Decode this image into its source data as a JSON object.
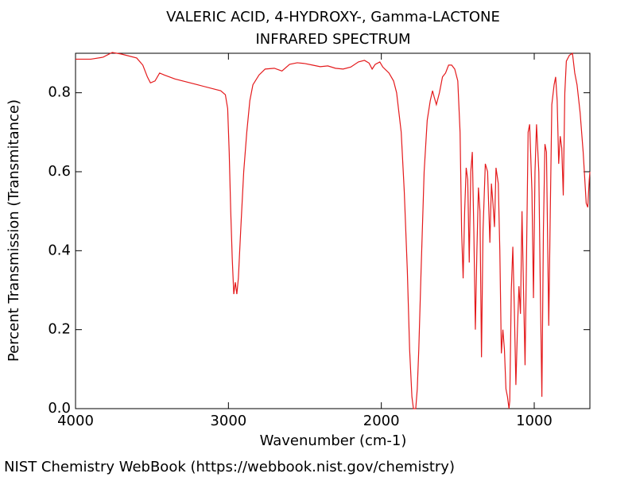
{
  "chart_data": {
    "type": "line",
    "title": "VALERIC ACID, 4-HYDROXY-, Gamma-LACTONE",
    "subtitle": "INFRARED SPECTRUM",
    "x_label": "Wavenumber (cm-1)",
    "y_label": "Percent Transmission (Transmitance)",
    "footer": "NIST Chemistry WebBook (https://webbook.nist.gov/chemistry)",
    "color": "#e41a1c",
    "xlim": [
      4000,
      636
    ],
    "ylim": [
      0,
      0.9
    ],
    "xticks": [
      4000,
      3000,
      2000,
      1000
    ],
    "yticks": [
      {
        "value": 0,
        "label": "0.0"
      },
      0.2,
      0.4,
      0.6,
      0.8
    ],
    "x": [
      4000,
      3900,
      3820,
      3760,
      3700,
      3600,
      3560,
      3530,
      3510,
      3480,
      3450,
      3420,
      3350,
      3200,
      3050,
      3020,
      3005,
      2995,
      2985,
      2975,
      2965,
      2955,
      2945,
      2935,
      2920,
      2900,
      2880,
      2860,
      2840,
      2800,
      2760,
      2700,
      2650,
      2600,
      2550,
      2500,
      2450,
      2400,
      2350,
      2300,
      2250,
      2200,
      2150,
      2110,
      2080,
      2060,
      2040,
      2010,
      1990,
      1950,
      1920,
      1900,
      1870,
      1850,
      1830,
      1815,
      1800,
      1790,
      1775,
      1765,
      1755,
      1740,
      1720,
      1700,
      1680,
      1665,
      1655,
      1640,
      1620,
      1600,
      1580,
      1560,
      1540,
      1520,
      1500,
      1485,
      1475,
      1465,
      1455,
      1445,
      1435,
      1425,
      1415,
      1405,
      1395,
      1385,
      1375,
      1365,
      1355,
      1345,
      1335,
      1320,
      1305,
      1290,
      1280,
      1270,
      1260,
      1250,
      1235,
      1225,
      1215,
      1205,
      1195,
      1185,
      1175,
      1165,
      1160,
      1150,
      1140,
      1130,
      1120,
      1110,
      1100,
      1090,
      1080,
      1070,
      1060,
      1050,
      1040,
      1030,
      1015,
      1005,
      995,
      985,
      970,
      960,
      950,
      940,
      930,
      920,
      905,
      895,
      885,
      870,
      860,
      850,
      840,
      830,
      820,
      810,
      800,
      790,
      770,
      750,
      735,
      720,
      700,
      680,
      660,
      650,
      640,
      636
    ],
    "values": [
      0.885,
      0.885,
      0.89,
      0.902,
      0.898,
      0.888,
      0.87,
      0.84,
      0.825,
      0.83,
      0.85,
      0.845,
      0.835,
      0.82,
      0.805,
      0.795,
      0.76,
      0.65,
      0.5,
      0.38,
      0.29,
      0.32,
      0.29,
      0.33,
      0.45,
      0.6,
      0.7,
      0.78,
      0.82,
      0.845,
      0.86,
      0.862,
      0.855,
      0.872,
      0.876,
      0.874,
      0.87,
      0.866,
      0.868,
      0.862,
      0.86,
      0.865,
      0.878,
      0.882,
      0.875,
      0.86,
      0.872,
      0.878,
      0.865,
      0.85,
      0.83,
      0.8,
      0.7,
      0.55,
      0.35,
      0.15,
      0.03,
      0.0,
      0.0,
      0.05,
      0.15,
      0.35,
      0.6,
      0.73,
      0.78,
      0.805,
      0.79,
      0.77,
      0.8,
      0.84,
      0.85,
      0.87,
      0.87,
      0.86,
      0.83,
      0.7,
      0.45,
      0.33,
      0.5,
      0.61,
      0.58,
      0.37,
      0.6,
      0.65,
      0.45,
      0.2,
      0.4,
      0.56,
      0.5,
      0.13,
      0.45,
      0.62,
      0.6,
      0.42,
      0.57,
      0.52,
      0.46,
      0.61,
      0.57,
      0.4,
      0.14,
      0.2,
      0.15,
      0.05,
      0.03,
      0.0,
      0.02,
      0.3,
      0.41,
      0.25,
      0.06,
      0.2,
      0.31,
      0.24,
      0.5,
      0.3,
      0.11,
      0.4,
      0.7,
      0.72,
      0.55,
      0.28,
      0.6,
      0.72,
      0.6,
      0.3,
      0.03,
      0.45,
      0.67,
      0.65,
      0.21,
      0.5,
      0.77,
      0.82,
      0.84,
      0.78,
      0.62,
      0.69,
      0.66,
      0.54,
      0.8,
      0.88,
      0.895,
      0.9,
      0.85,
      0.82,
      0.75,
      0.65,
      0.52,
      0.51,
      0.58,
      0.6
    ]
  }
}
